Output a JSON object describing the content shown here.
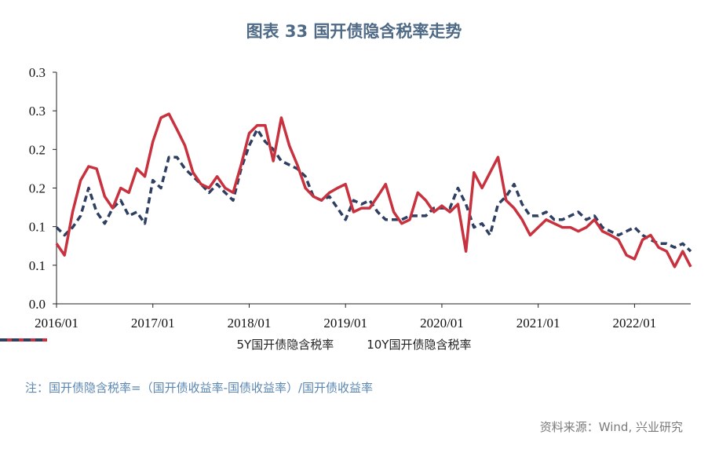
{
  "chart_data": {
    "type": "line",
    "title": "图表 33 国开债隐含税率走势",
    "xlabel": "",
    "ylabel": "",
    "ylim": [
      0,
      0.3
    ],
    "y_ticks": [
      0.0,
      0.05,
      0.1,
      0.15,
      0.2,
      0.25,
      0.3
    ],
    "y_tick_labels": [
      "0.0",
      "0.1",
      "0.1",
      "0.2",
      "0.2",
      "0.3",
      "0.3"
    ],
    "x_tick_labels": [
      "2016/01",
      "2017/01",
      "2018/01",
      "2019/01",
      "2020/01",
      "2021/01",
      "2022/01"
    ],
    "xlim": [
      "2016/01",
      "2022/08"
    ],
    "grid": false,
    "legend_position": "bottom",
    "x": [
      "2016/01",
      "2016/02",
      "2016/03",
      "2016/04",
      "2016/05",
      "2016/06",
      "2016/07",
      "2016/08",
      "2016/09",
      "2016/10",
      "2016/11",
      "2016/12",
      "2017/01",
      "2017/02",
      "2017/03",
      "2017/04",
      "2017/05",
      "2017/06",
      "2017/07",
      "2017/08",
      "2017/09",
      "2017/10",
      "2017/11",
      "2017/12",
      "2018/01",
      "2018/02",
      "2018/03",
      "2018/04",
      "2018/05",
      "2018/06",
      "2018/07",
      "2018/08",
      "2018/09",
      "2018/10",
      "2018/11",
      "2018/12",
      "2019/01",
      "2019/02",
      "2019/03",
      "2019/04",
      "2019/05",
      "2019/06",
      "2019/07",
      "2019/08",
      "2019/09",
      "2019/10",
      "2019/11",
      "2019/12",
      "2020/01",
      "2020/02",
      "2020/03",
      "2020/04",
      "2020/05",
      "2020/06",
      "2020/07",
      "2020/08",
      "2020/09",
      "2020/10",
      "2020/11",
      "2020/12",
      "2021/01",
      "2021/02",
      "2021/03",
      "2021/04",
      "2021/05",
      "2021/06",
      "2021/07",
      "2021/08",
      "2021/09",
      "2021/10",
      "2021/11",
      "2021/12",
      "2022/01",
      "2022/02",
      "2022/03",
      "2022/04",
      "2022/05",
      "2022/06",
      "2022/07",
      "2022/08"
    ],
    "series": [
      {
        "name": "5Y国开债隐含税率",
        "color": "#c8323f",
        "style": "solid",
        "values": [
          0.078,
          0.063,
          0.119,
          0.16,
          0.178,
          0.175,
          0.139,
          0.124,
          0.15,
          0.144,
          0.175,
          0.165,
          0.21,
          0.241,
          0.246,
          0.226,
          0.205,
          0.17,
          0.155,
          0.15,
          0.165,
          0.15,
          0.144,
          0.18,
          0.221,
          0.231,
          0.231,
          0.185,
          0.241,
          0.205,
          0.18,
          0.15,
          0.139,
          0.134,
          0.144,
          0.15,
          0.155,
          0.119,
          0.124,
          0.124,
          0.139,
          0.155,
          0.119,
          0.104,
          0.109,
          0.144,
          0.134,
          0.119,
          0.127,
          0.119,
          0.129,
          0.068,
          0.17,
          0.15,
          0.17,
          0.19,
          0.134,
          0.124,
          0.109,
          0.089,
          0.099,
          0.109,
          0.104,
          0.099,
          0.099,
          0.094,
          0.099,
          0.109,
          0.094,
          0.089,
          0.083,
          0.063,
          0.058,
          0.083,
          0.089,
          0.073,
          0.068,
          0.048,
          0.068,
          0.048
        ]
      },
      {
        "name": "10Y国开债隐含税率",
        "color": "#2f3f62",
        "style": "dashed",
        "values": [
          0.099,
          0.089,
          0.099,
          0.114,
          0.15,
          0.119,
          0.104,
          0.124,
          0.134,
          0.114,
          0.119,
          0.104,
          0.16,
          0.15,
          0.19,
          0.19,
          0.175,
          0.165,
          0.155,
          0.144,
          0.155,
          0.144,
          0.134,
          0.175,
          0.205,
          0.226,
          0.21,
          0.2,
          0.185,
          0.18,
          0.175,
          0.165,
          0.139,
          0.134,
          0.139,
          0.124,
          0.109,
          0.134,
          0.129,
          0.134,
          0.119,
          0.109,
          0.109,
          0.109,
          0.114,
          0.114,
          0.114,
          0.124,
          0.124,
          0.124,
          0.15,
          0.129,
          0.099,
          0.104,
          0.089,
          0.129,
          0.139,
          0.155,
          0.129,
          0.114,
          0.114,
          0.119,
          0.109,
          0.109,
          0.114,
          0.119,
          0.109,
          0.114,
          0.099,
          0.094,
          0.089,
          0.094,
          0.099,
          0.089,
          0.083,
          0.078,
          0.078,
          0.073,
          0.078,
          0.068
        ]
      }
    ]
  },
  "note": "注：国开债隐含税率=（国开债收益率-国债收益率）/国开债收益率",
  "source": "资料来源：Wind, 兴业研究"
}
